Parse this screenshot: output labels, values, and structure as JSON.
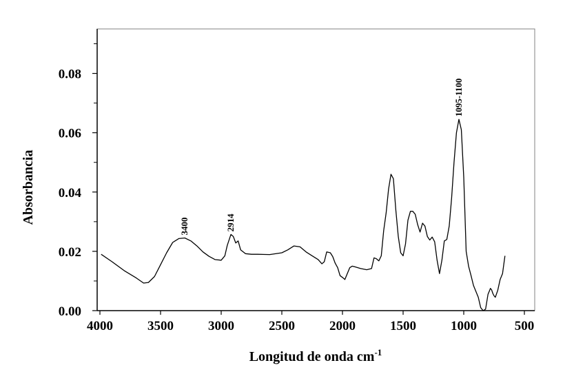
{
  "chart_data": {
    "type": "line",
    "xlabel": "Longitud de onda cm",
    "xlabel_superscript": "-1",
    "ylabel": "Absorbancia",
    "xlim": [
      4000,
      500
    ],
    "x_reversed": true,
    "ylim": [
      0.0,
      0.095
    ],
    "x_ticks": [
      4000,
      3500,
      3000,
      2500,
      2000,
      1500,
      1000,
      500
    ],
    "x_tick_labels": [
      "4000",
      "3500",
      "3000",
      "2500",
      "2000",
      "1500",
      "1000",
      "500"
    ],
    "y_ticks": [
      0.0,
      0.02,
      0.04,
      0.06,
      0.08
    ],
    "y_minor_ticks": [
      0.01,
      0.03,
      0.05,
      0.07,
      0.09
    ],
    "y_tick_labels": [
      "0.00",
      "0.02",
      "0.04",
      "0.06",
      "0.08"
    ],
    "grid": false,
    "legend": "none",
    "line_color": "#000000",
    "annotations": [
      {
        "text": "3400",
        "x": 3300,
        "y": 0.0245
      },
      {
        "text": "2914",
        "x": 2920,
        "y": 0.0257
      },
      {
        "text": "1095-1100",
        "x": 1040,
        "y": 0.0645
      }
    ],
    "series": [
      {
        "x": [
          3990,
          3900,
          3800,
          3700,
          3640,
          3600,
          3550,
          3500,
          3450,
          3400,
          3350,
          3300,
          3250,
          3200,
          3150,
          3100,
          3050,
          3000,
          2970,
          2950,
          2920,
          2900,
          2880,
          2860,
          2840,
          2800,
          2750,
          2700,
          2600,
          2500,
          2450,
          2400,
          2350,
          2300,
          2250,
          2200,
          2170,
          2150,
          2130,
          2100,
          2080,
          2060,
          2040,
          2020,
          2000,
          1980,
          1960,
          1940,
          1920,
          1900,
          1850,
          1800,
          1760,
          1740,
          1720,
          1700,
          1680,
          1660,
          1640,
          1620,
          1600,
          1580,
          1560,
          1540,
          1520,
          1500,
          1480,
          1460,
          1440,
          1420,
          1400,
          1380,
          1360,
          1340,
          1320,
          1300,
          1280,
          1260,
          1240,
          1220,
          1200,
          1180,
          1160,
          1140,
          1120,
          1100,
          1080,
          1060,
          1040,
          1020,
          1000,
          980,
          960,
          940,
          920,
          900,
          880,
          860,
          840,
          820,
          800,
          790,
          780,
          770,
          760,
          750,
          740,
          720,
          700,
          680,
          660
        ],
        "y": [
          0.019,
          0.0165,
          0.0135,
          0.011,
          0.0093,
          0.0095,
          0.0115,
          0.0155,
          0.0195,
          0.023,
          0.0243,
          0.0245,
          0.0235,
          0.0218,
          0.0198,
          0.0183,
          0.0172,
          0.017,
          0.0185,
          0.022,
          0.0257,
          0.025,
          0.0228,
          0.0235,
          0.0205,
          0.0192,
          0.019,
          0.019,
          0.0189,
          0.0195,
          0.0205,
          0.0218,
          0.0215,
          0.0198,
          0.0185,
          0.0172,
          0.0158,
          0.0165,
          0.0198,
          0.0195,
          0.0182,
          0.016,
          0.0145,
          0.0118,
          0.0112,
          0.0105,
          0.0125,
          0.0145,
          0.015,
          0.0148,
          0.0142,
          0.0138,
          0.0142,
          0.0178,
          0.0175,
          0.0168,
          0.0185,
          0.027,
          0.033,
          0.041,
          0.046,
          0.0445,
          0.034,
          0.025,
          0.0195,
          0.0185,
          0.0225,
          0.0305,
          0.0335,
          0.0335,
          0.0325,
          0.029,
          0.0265,
          0.0295,
          0.0285,
          0.025,
          0.0238,
          0.0248,
          0.0232,
          0.017,
          0.0125,
          0.017,
          0.0235,
          0.024,
          0.0285,
          0.038,
          0.05,
          0.06,
          0.0645,
          0.061,
          0.045,
          0.02,
          0.015,
          0.0118,
          0.0085,
          0.0065,
          0.0045,
          0.001,
          0.0,
          0.0005,
          0.0055,
          0.0065,
          0.0075,
          0.007,
          0.0058,
          0.005,
          0.0045,
          0.0068,
          0.0105,
          0.0125,
          0.0185
        ]
      }
    ]
  }
}
